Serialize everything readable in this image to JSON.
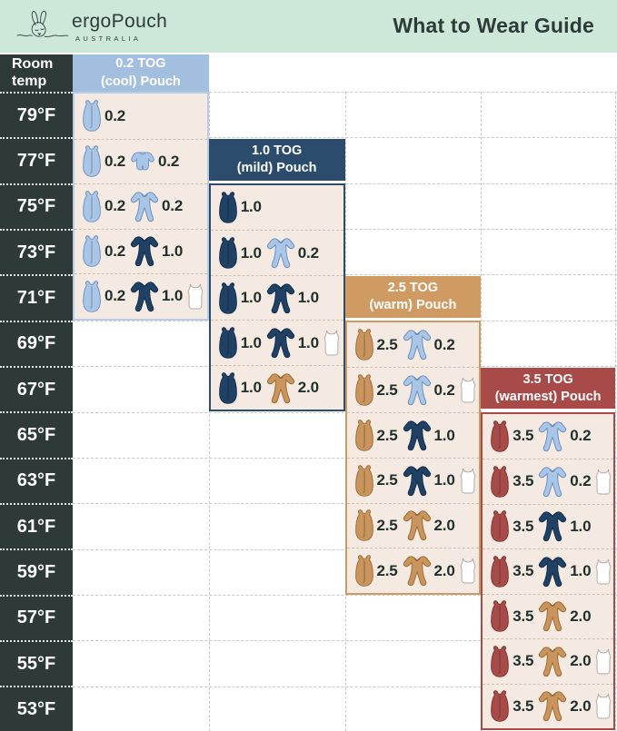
{
  "header": {
    "brand": "ergoPouch",
    "brand_sub": "AUSTRALIA",
    "title": "What to Wear Guide"
  },
  "temp_column": {
    "header_line1": "Room",
    "header_line2": "temp"
  },
  "colors": {
    "mint": "#cde8d9",
    "charcoal": "#2d3a38",
    "cream": "#f4eae2",
    "title_text": "#2e3b38",
    "number_text": "#20302d",
    "grid_dash": "#c7c7c7",
    "body_dash": "#d2c0ae",
    "panel_accents": [
      "#a3bfdf",
      "#2b4c6d",
      "#cf9b63",
      "#a84b48"
    ],
    "panel_borders": [
      "#b6cce9",
      "#2b4c6d",
      "#cf9b63",
      "#a84b48"
    ],
    "icon_palette": {
      "light_blue": {
        "fill": "#a9c6e8",
        "stroke": "#6b90bc"
      },
      "navy": {
        "fill": "#1f4164",
        "stroke": "#142e4a"
      },
      "tan": {
        "fill": "#c9955c",
        "stroke": "#9c6c35"
      },
      "maroon": {
        "fill": "#a84b48",
        "stroke": "#7c3330"
      },
      "white": {
        "fill": "#ffffff",
        "stroke": "#a7aaa7"
      }
    }
  },
  "chart_data": {
    "type": "table",
    "title": "What to Wear Guide",
    "row_header": "Room temp",
    "temperatures": [
      "79°F",
      "77°F",
      "75°F",
      "73°F",
      "71°F",
      "69°F",
      "67°F",
      "65°F",
      "63°F",
      "61°F",
      "59°F",
      "57°F",
      "55°F",
      "53°F"
    ],
    "panels": [
      {
        "name": "0.2 TOG (cool) Pouch",
        "title_line1": "0.2 TOG",
        "title_line2": "(cool) Pouch",
        "accent_index": 0,
        "temps": [
          "79°F",
          "77°F",
          "75°F",
          "73°F",
          "71°F"
        ],
        "rows": [
          [
            {
              "garment": "pouch",
              "color": "light_blue",
              "tog": "0.2"
            }
          ],
          [
            {
              "garment": "pouch",
              "color": "light_blue",
              "tog": "0.2"
            },
            {
              "garment": "romper",
              "color": "light_blue",
              "tog": "0.2"
            }
          ],
          [
            {
              "garment": "pouch",
              "color": "light_blue",
              "tog": "0.2"
            },
            {
              "garment": "onesie",
              "color": "light_blue",
              "tog": "0.2"
            }
          ],
          [
            {
              "garment": "pouch",
              "color": "light_blue",
              "tog": "0.2"
            },
            {
              "garment": "onesie",
              "color": "navy",
              "tog": "1.0"
            }
          ],
          [
            {
              "garment": "pouch",
              "color": "light_blue",
              "tog": "0.2"
            },
            {
              "garment": "onesie",
              "color": "navy",
              "tog": "1.0"
            },
            {
              "garment": "singlet",
              "color": "white",
              "tog": ""
            }
          ]
        ]
      },
      {
        "name": "1.0 TOG (mild) Pouch",
        "title_line1": "1.0 TOG",
        "title_line2": "(mild) Pouch",
        "accent_index": 1,
        "temps": [
          "75°F",
          "73°F",
          "71°F",
          "69°F",
          "67°F"
        ],
        "rows": [
          [
            {
              "garment": "pouch",
              "color": "navy",
              "tog": "1.0"
            }
          ],
          [
            {
              "garment": "pouch",
              "color": "navy",
              "tog": "1.0"
            },
            {
              "garment": "onesie",
              "color": "light_blue",
              "tog": "0.2"
            }
          ],
          [
            {
              "garment": "pouch",
              "color": "navy",
              "tog": "1.0"
            },
            {
              "garment": "onesie",
              "color": "navy",
              "tog": "1.0"
            }
          ],
          [
            {
              "garment": "pouch",
              "color": "navy",
              "tog": "1.0"
            },
            {
              "garment": "onesie",
              "color": "navy",
              "tog": "1.0"
            },
            {
              "garment": "singlet",
              "color": "white",
              "tog": ""
            }
          ],
          [
            {
              "garment": "pouch",
              "color": "navy",
              "tog": "1.0"
            },
            {
              "garment": "onesie",
              "color": "tan",
              "tog": "2.0"
            }
          ]
        ]
      },
      {
        "name": "2.5 TOG (warm) Pouch",
        "title_line1": "2.5 TOG",
        "title_line2": "(warm) Pouch",
        "accent_index": 2,
        "temps": [
          "69°F",
          "67°F",
          "65°F",
          "63°F",
          "61°F",
          "59°F"
        ],
        "rows": [
          [
            {
              "garment": "pouch",
              "color": "tan",
              "tog": "2.5"
            },
            {
              "garment": "onesie",
              "color": "light_blue",
              "tog": "0.2"
            }
          ],
          [
            {
              "garment": "pouch",
              "color": "tan",
              "tog": "2.5"
            },
            {
              "garment": "onesie",
              "color": "light_blue",
              "tog": "0.2"
            },
            {
              "garment": "singlet",
              "color": "white",
              "tog": ""
            }
          ],
          [
            {
              "garment": "pouch",
              "color": "tan",
              "tog": "2.5"
            },
            {
              "garment": "onesie",
              "color": "navy",
              "tog": "1.0"
            }
          ],
          [
            {
              "garment": "pouch",
              "color": "tan",
              "tog": "2.5"
            },
            {
              "garment": "onesie",
              "color": "navy",
              "tog": "1.0"
            },
            {
              "garment": "singlet",
              "color": "white",
              "tog": ""
            }
          ],
          [
            {
              "garment": "pouch",
              "color": "tan",
              "tog": "2.5"
            },
            {
              "garment": "onesie",
              "color": "tan",
              "tog": "2.0"
            }
          ],
          [
            {
              "garment": "pouch",
              "color": "tan",
              "tog": "2.5"
            },
            {
              "garment": "onesie",
              "color": "tan",
              "tog": "2.0"
            },
            {
              "garment": "singlet",
              "color": "white",
              "tog": ""
            }
          ]
        ]
      },
      {
        "name": "3.5 TOG (warmest) Pouch",
        "title_line1": "3.5 TOG",
        "title_line2": "(warmest) Pouch",
        "accent_index": 3,
        "temps": [
          "65°F",
          "63°F",
          "61°F",
          "59°F",
          "57°F",
          "55°F",
          "53°F"
        ],
        "rows": [
          [
            {
              "garment": "pouch",
              "color": "maroon",
              "tog": "3.5"
            },
            {
              "garment": "onesie",
              "color": "light_blue",
              "tog": "0.2"
            }
          ],
          [
            {
              "garment": "pouch",
              "color": "maroon",
              "tog": "3.5"
            },
            {
              "garment": "onesie",
              "color": "light_blue",
              "tog": "0.2"
            },
            {
              "garment": "singlet",
              "color": "white",
              "tog": ""
            }
          ],
          [
            {
              "garment": "pouch",
              "color": "maroon",
              "tog": "3.5"
            },
            {
              "garment": "onesie",
              "color": "navy",
              "tog": "1.0"
            }
          ],
          [
            {
              "garment": "pouch",
              "color": "maroon",
              "tog": "3.5"
            },
            {
              "garment": "onesie",
              "color": "navy",
              "tog": "1.0"
            },
            {
              "garment": "singlet",
              "color": "white",
              "tog": ""
            }
          ],
          [
            {
              "garment": "pouch",
              "color": "maroon",
              "tog": "3.5"
            },
            {
              "garment": "onesie",
              "color": "tan",
              "tog": "2.0"
            }
          ],
          [
            {
              "garment": "pouch",
              "color": "maroon",
              "tog": "3.5"
            },
            {
              "garment": "onesie",
              "color": "tan",
              "tog": "2.0"
            },
            {
              "garment": "singlet",
              "color": "white",
              "tog": ""
            }
          ],
          [
            {
              "garment": "pouch",
              "color": "maroon",
              "tog": "3.5"
            },
            {
              "garment": "onesie",
              "color": "tan",
              "tog": "2.0"
            },
            {
              "garment": "singlet",
              "color": "white",
              "tog": ""
            }
          ]
        ]
      }
    ]
  }
}
